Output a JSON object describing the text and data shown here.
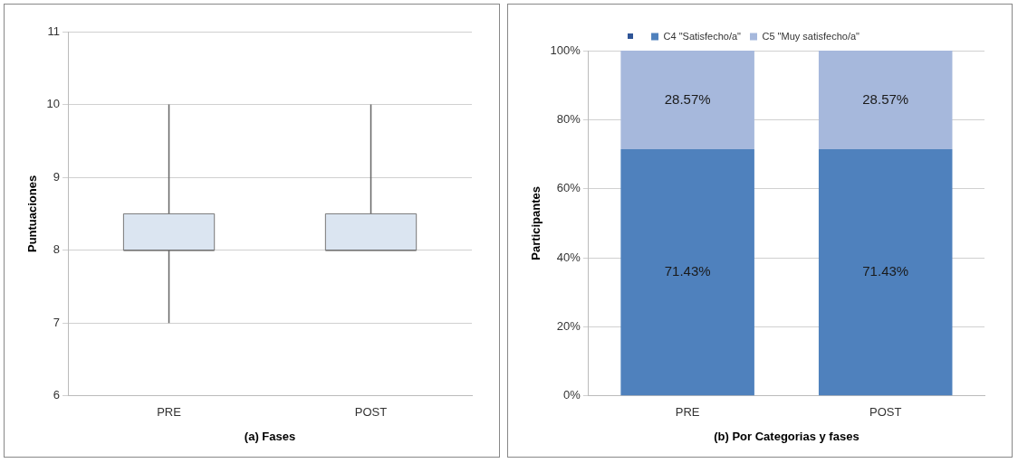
{
  "chart_data": [
    {
      "type": "box",
      "xlabel": "(a) Fases",
      "ylabel": "Puntuaciones",
      "categories": [
        "PRE",
        "POST"
      ],
      "ylim": [
        6,
        11
      ],
      "yticks": [
        6,
        7,
        8,
        9,
        10,
        11
      ],
      "grid": "y",
      "legend": false,
      "series": [
        {
          "color": "#dbe5f1",
          "boxes": [
            {
              "low": 7,
              "q1": 8,
              "median": 8,
              "q3": 8.5,
              "high": 10
            },
            {
              "low": 8,
              "q1": 8,
              "median": 8,
              "q3": 8.5,
              "high": 10
            }
          ]
        }
      ]
    },
    {
      "type": "bar",
      "stacked": true,
      "xlabel": "(b) Por Categorias y fases",
      "ylabel": "Participantes",
      "categories": [
        "PRE",
        "POST"
      ],
      "ylim": [
        0,
        100
      ],
      "yticks": [
        {
          "value": 0,
          "label": "0%"
        },
        {
          "value": 20,
          "label": "20%"
        },
        {
          "value": 40,
          "label": "40%"
        },
        {
          "value": 60,
          "label": "60%"
        },
        {
          "value": 80,
          "label": "80%"
        },
        {
          "value": 100,
          "label": "100%"
        }
      ],
      "grid": "y",
      "legend": "top",
      "series": [
        {
          "name": "C4 \"Satisfecho/a\"",
          "color": "#4f81bd",
          "values": [
            71.43,
            71.43
          ],
          "value_labels": [
            "71.43%",
            "71.43%"
          ]
        },
        {
          "name": "C5 \"Muy satisfecho/a\"",
          "color": "#a6b8dc",
          "values": [
            28.57,
            28.57
          ],
          "value_labels": [
            "28.57%",
            "28.57%"
          ]
        }
      ]
    }
  ]
}
